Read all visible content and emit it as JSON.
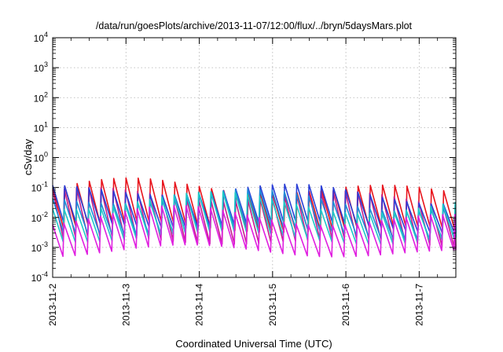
{
  "chart_data": {
    "type": "line",
    "title": "/data/run/goesPlots/archive/2013-11-07/12:00/flux/../bryn/5daysMars.plot",
    "xlabel": "Coordinated Universal Time (UTC)",
    "ylabel": "cSv/day",
    "y_scale": "log",
    "ylim": [
      0.0001,
      10000
    ],
    "y_ticks": [
      {
        "value": 0.0001,
        "base": "10",
        "exp": "-4"
      },
      {
        "value": 0.001,
        "base": "10",
        "exp": "-3"
      },
      {
        "value": 0.01,
        "base": "10",
        "exp": "-2"
      },
      {
        "value": 0.1,
        "base": "10",
        "exp": "-1"
      },
      {
        "value": 1,
        "base": "10",
        "exp": "0"
      },
      {
        "value": 10,
        "base": "10",
        "exp": "1"
      },
      {
        "value": 100,
        "base": "10",
        "exp": "2"
      },
      {
        "value": 1000,
        "base": "10",
        "exp": "3"
      },
      {
        "value": 10000,
        "base": "10",
        "exp": "4"
      }
    ],
    "xlim": [
      "2013-11-02T00:00",
      "2013-11-07T12:00"
    ],
    "x_ticks": [
      "2013-11-2",
      "2013-11-3",
      "2013-11-4",
      "2013-11-5",
      "2013-11-6",
      "2013-11-7"
    ],
    "grid": true,
    "legend": "none",
    "sawtooth_period_hours": 4,
    "series": [
      {
        "color": "#e8141c",
        "peak": 0.09,
        "trough": 0.004,
        "phase": 0.0
      },
      {
        "color": "#c41f8a",
        "peak": 0.05,
        "trough": 0.0015,
        "phase": 0.05
      },
      {
        "color": "#2b3fd6",
        "peak": 0.07,
        "trough": 0.005,
        "phase": 0.02
      },
      {
        "color": "#1e8bd9",
        "peak": 0.04,
        "trough": 0.003,
        "phase": 0.04
      },
      {
        "color": "#1ec8c8",
        "peak": 0.03,
        "trough": 0.002,
        "phase": 0.06
      },
      {
        "color": "#e01fe0",
        "peak": 0.01,
        "trough": 0.0007,
        "phase": 0.08
      }
    ]
  }
}
